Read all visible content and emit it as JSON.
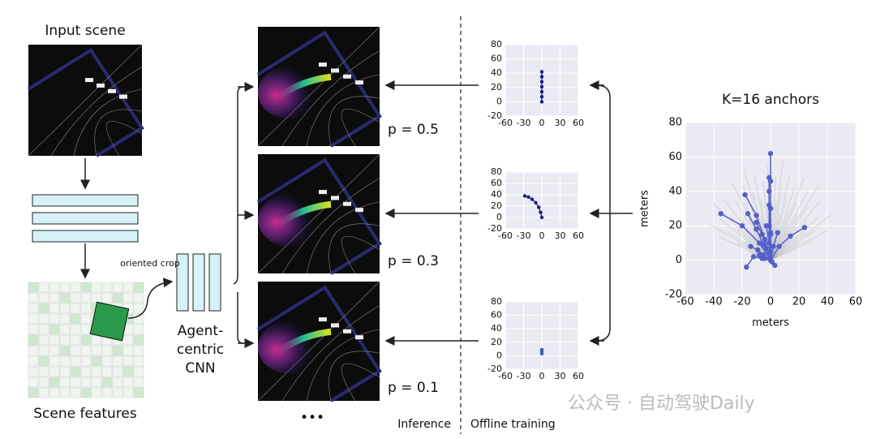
{
  "pipeline": {
    "input_title": "Input scene",
    "features_title": "Scene features",
    "crop_label": "oriented crop",
    "cnn_label": [
      "Agent-",
      "centric",
      "CNN"
    ],
    "probabilities": [
      "p = 0.5",
      "p = 0.3",
      "p = 0.1"
    ],
    "ellipsis": "•••",
    "inference": "Inference",
    "offline": "Offline training",
    "watermark": "公众号 · 自动驾驶Daily"
  },
  "plots": [
    {
      "xlim": [
        -60,
        60
      ],
      "ylim": [
        -20,
        80
      ],
      "xticks": [
        -60,
        -30,
        0,
        30,
        60
      ],
      "yticks": [
        -20,
        0,
        20,
        40,
        60,
        80
      ],
      "series": [
        {
          "color": "#1a1a8c",
          "x": [
            0,
            0,
            0,
            0,
            0,
            0,
            0
          ],
          "y": [
            0,
            7,
            14,
            21,
            28,
            35,
            42
          ]
        }
      ]
    },
    {
      "xlim": [
        -60,
        60
      ],
      "ylim": [
        -20,
        80
      ],
      "xticks": [
        -60,
        -30,
        0,
        30,
        60
      ],
      "yticks": [
        -20,
        0,
        20,
        40,
        60,
        80
      ],
      "series": [
        {
          "color": "#1a1a8c",
          "x": [
            -28,
            -22,
            -16,
            -10,
            -5,
            -2,
            0
          ],
          "y": [
            38,
            36,
            32,
            26,
            18,
            9,
            0
          ]
        }
      ]
    },
    {
      "xlim": [
        -60,
        60
      ],
      "ylim": [
        -20,
        80
      ],
      "xticks": [
        -60,
        -30,
        0,
        30,
        60
      ],
      "yticks": [
        -20,
        0,
        20,
        40,
        60,
        80
      ],
      "series": [
        {
          "color": "#4a5aa8",
          "x": [
            0,
            0,
            0,
            0
          ],
          "y": [
            3,
            5,
            7,
            9
          ]
        }
      ]
    },
    {
      "title": "K=16 anchors",
      "xlabel": "meters",
      "ylabel": "meters",
      "xlim": [
        -60,
        60
      ],
      "ylim": [
        -20,
        80
      ],
      "xticks": [
        -60,
        -40,
        -20,
        0,
        20,
        40,
        60
      ],
      "yticks": [
        -20,
        0,
        20,
        40,
        60,
        80
      ],
      "series": [
        {
          "color": "#5560c8",
          "x": [
            0,
            0,
            0,
            0,
            0
          ],
          "y": [
            0,
            15,
            30,
            46,
            62
          ]
        },
        {
          "color": "#5560c8",
          "x": [
            0,
            0,
            -1,
            -1
          ],
          "y": [
            0,
            16,
            32,
            48
          ]
        },
        {
          "color": "#5560c8",
          "x": [
            0,
            -1,
            -1
          ],
          "y": [
            0,
            20,
            40
          ]
        },
        {
          "color": "#5560c8",
          "x": [
            0,
            -4,
            -10,
            -18
          ],
          "y": [
            0,
            12,
            26,
            38
          ]
        },
        {
          "color": "#5560c8",
          "x": [
            0,
            -8,
            -20,
            -35
          ],
          "y": [
            0,
            10,
            20,
            27
          ]
        },
        {
          "color": "#5560c8",
          "x": [
            0,
            -5,
            -10,
            -16
          ],
          "y": [
            0,
            9,
            18,
            27
          ]
        },
        {
          "color": "#5560c8",
          "x": [
            0,
            -3,
            -6,
            -10
          ],
          "y": [
            0,
            7,
            15,
            22
          ]
        },
        {
          "color": "#5560c8",
          "x": [
            0,
            6,
            14,
            24
          ],
          "y": [
            0,
            8,
            14,
            19
          ]
        },
        {
          "color": "#5560c8",
          "x": [
            0,
            2,
            5
          ],
          "y": [
            0,
            8,
            16
          ]
        },
        {
          "color": "#5560c8",
          "x": [
            0,
            -5,
            -9,
            -14
          ],
          "y": [
            0,
            3,
            6,
            8
          ]
        },
        {
          "color": "#5560c8",
          "x": [
            0,
            -6,
            -12,
            -17
          ],
          "y": [
            0,
            1,
            2,
            -4
          ]
        },
        {
          "color": "#5560c8",
          "x": [
            0,
            -4,
            -8
          ],
          "y": [
            0,
            1,
            3
          ]
        },
        {
          "color": "#5560c8",
          "x": [
            0,
            1,
            3
          ],
          "y": [
            0,
            -1,
            -3
          ]
        },
        {
          "color": "#5560c8",
          "x": [
            0,
            0,
            0
          ],
          "y": [
            0,
            15,
            30
          ]
        },
        {
          "color": "#5560c8",
          "x": [
            0,
            -1,
            -3
          ],
          "y": [
            0,
            10,
            20
          ]
        },
        {
          "color": "#5560c8",
          "x": [
            0,
            0
          ],
          "y": [
            0,
            5
          ]
        }
      ]
    }
  ]
}
